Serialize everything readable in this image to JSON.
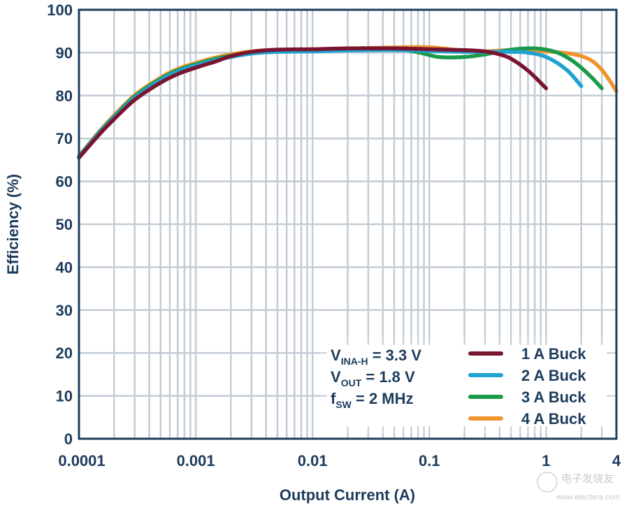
{
  "chart_data": {
    "type": "line",
    "title": "",
    "xlabel": "Output Current (A)",
    "ylabel": "Efficiency (%)",
    "xscale": "log",
    "xlim": [
      0.0001,
      4
    ],
    "ylim": [
      0,
      100
    ],
    "grid": true,
    "x_ticks": [
      {
        "value": 0.0001,
        "label": "0.0001"
      },
      {
        "value": 0.001,
        "label": "0.001"
      },
      {
        "value": 0.01,
        "label": "0.01"
      },
      {
        "value": 0.1,
        "label": "0.1"
      },
      {
        "value": 1,
        "label": "1"
      },
      {
        "value": 4,
        "label": "4"
      }
    ],
    "y_ticks": [
      {
        "value": 0,
        "label": "0"
      },
      {
        "value": 10,
        "label": "10"
      },
      {
        "value": 20,
        "label": "20"
      },
      {
        "value": 30,
        "label": "30"
      },
      {
        "value": 40,
        "label": "40"
      },
      {
        "value": 50,
        "label": "50"
      },
      {
        "value": 60,
        "label": "60"
      },
      {
        "value": 70,
        "label": "70"
      },
      {
        "value": 80,
        "label": "80"
      },
      {
        "value": 90,
        "label": "90"
      },
      {
        "value": 100,
        "label": "100"
      }
    ],
    "legend_placement": "bottom-right",
    "series": [
      {
        "name": "1 A Buck",
        "color": "#7a1530",
        "x": [
          0.0001,
          0.00015,
          0.0002,
          0.0003,
          0.0005,
          0.0007,
          0.001,
          0.0015,
          0.002,
          0.003,
          0.005,
          0.01,
          0.02,
          0.05,
          0.1,
          0.2,
          0.3,
          0.4,
          0.5,
          0.7,
          1
        ],
        "y": [
          65.5,
          71,
          74.5,
          79,
          83,
          85,
          86.5,
          88,
          89.2,
          90.2,
          90.7,
          90.8,
          91,
          91,
          90.8,
          90.6,
          90.3,
          89.6,
          88.6,
          85.8,
          81.7
        ]
      },
      {
        "name": "2 A Buck",
        "color": "#1fa3d0",
        "x": [
          0.0001,
          0.00015,
          0.0002,
          0.0003,
          0.0005,
          0.0007,
          0.001,
          0.0015,
          0.002,
          0.003,
          0.005,
          0.01,
          0.02,
          0.05,
          0.1,
          0.2,
          0.3,
          0.5,
          0.7,
          1,
          1.5,
          2
        ],
        "y": [
          65.7,
          71.3,
          74.9,
          79.5,
          83.6,
          85.6,
          87,
          88.3,
          89,
          89.8,
          90.2,
          90.3,
          90.5,
          90.6,
          90.4,
          90.2,
          90.2,
          90.2,
          90,
          89,
          86,
          82.2
        ]
      },
      {
        "name": "3 A Buck",
        "color": "#1a9a4a",
        "x": [
          0.0001,
          0.00015,
          0.0002,
          0.0003,
          0.0005,
          0.0007,
          0.001,
          0.0015,
          0.002,
          0.003,
          0.005,
          0.01,
          0.02,
          0.05,
          0.08,
          0.12,
          0.2,
          0.3,
          0.5,
          0.8,
          1.2,
          1.6,
          2,
          2.5,
          3
        ],
        "y": [
          65.8,
          71.5,
          75.1,
          79.8,
          83.9,
          85.9,
          87.3,
          88.6,
          89.3,
          90,
          90.4,
          90.5,
          90.8,
          90.8,
          90.1,
          89,
          89,
          89.6,
          90.7,
          91,
          90.2,
          88.5,
          86.5,
          84,
          81.7
        ]
      },
      {
        "name": "4 A Buck",
        "color": "#f0952e",
        "x": [
          0.0001,
          0.00015,
          0.0002,
          0.0003,
          0.0005,
          0.0007,
          0.001,
          0.0015,
          0.002,
          0.003,
          0.005,
          0.01,
          0.02,
          0.05,
          0.08,
          0.12,
          0.2,
          0.3,
          0.5,
          1,
          1.5,
          2,
          2.5,
          3,
          3.5,
          4
        ],
        "y": [
          65.9,
          71.7,
          75.4,
          80.1,
          84.2,
          86.2,
          87.6,
          88.9,
          89.6,
          90.3,
          90.7,
          90.8,
          91,
          91.2,
          91.3,
          91.1,
          90.4,
          90.3,
          90.6,
          90.3,
          89.9,
          89.2,
          88,
          86,
          83.5,
          81
        ]
      }
    ],
    "annotations": [
      {
        "main": "V",
        "sub": "INA-H",
        "rest": " = 3.3 V"
      },
      {
        "main": "V",
        "sub": "OUT",
        "rest": " = 1.8 V"
      },
      {
        "main": "f",
        "sub": "SW",
        "rest": " = 2 MHz"
      }
    ]
  },
  "watermark": {
    "line1": "电子发烧友",
    "line2": "www.elecfans.com"
  }
}
